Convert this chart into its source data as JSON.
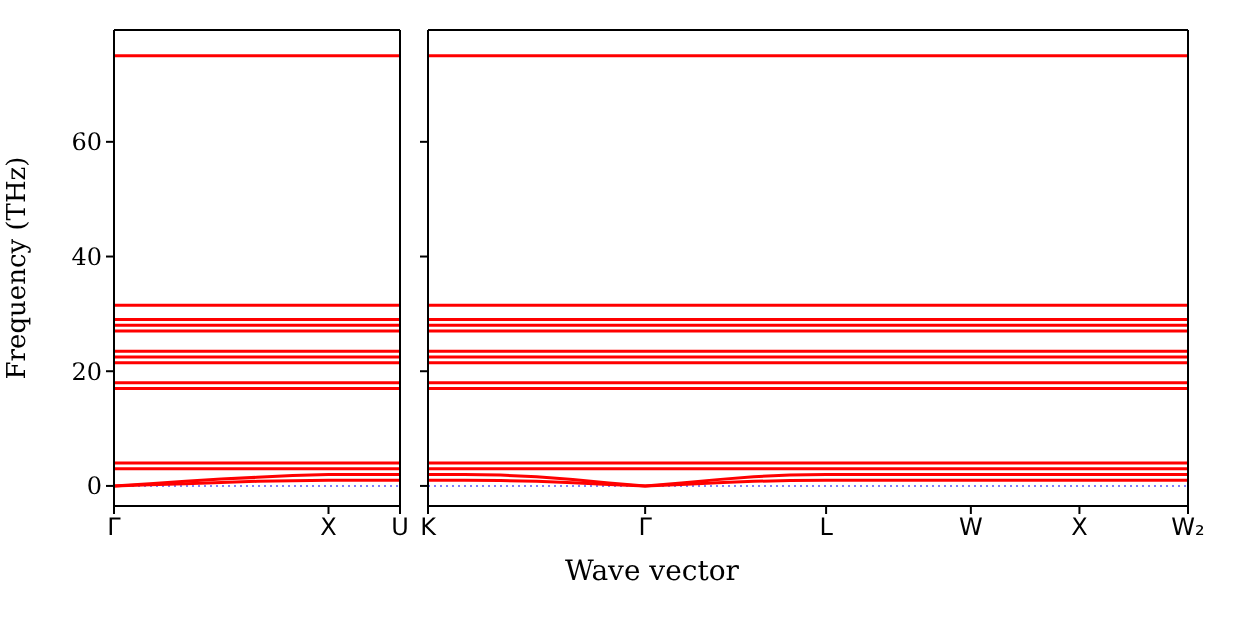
{
  "chart_data": [
    {
      "type": "line",
      "ylabel": "Frequency (THz)",
      "categories": [
        "Γ",
        null,
        null,
        null,
        null,
        null,
        "X",
        null,
        "U"
      ],
      "ylim": [
        -3.5,
        79.5
      ],
      "yticks": [
        0,
        20,
        40,
        60
      ],
      "grid": false,
      "legend": false,
      "marker": "none",
      "line_style": "solid",
      "ref_lines": [
        {
          "axis": "y",
          "value": 0,
          "label": null,
          "color": "#8080ff",
          "line_style": "dotted"
        }
      ],
      "series": [
        {
          "color": "#ff0000",
          "values": [
            75,
            75,
            75,
            75,
            75,
            75,
            75,
            75,
            75
          ]
        },
        {
          "color": "#ff0000",
          "values": [
            31.5,
            31.5,
            31.5,
            31.5,
            31.5,
            31.5,
            31.5,
            31.5,
            31.5
          ]
        },
        {
          "color": "#ff0000",
          "values": [
            29,
            29,
            29,
            29,
            29,
            29,
            29,
            29,
            29
          ]
        },
        {
          "color": "#ff0000",
          "values": [
            28,
            28,
            28,
            28,
            28,
            28,
            28,
            28,
            28
          ]
        },
        {
          "color": "#ff0000",
          "values": [
            27,
            27,
            27,
            27,
            27,
            27,
            27,
            27,
            27
          ]
        },
        {
          "color": "#ff0000",
          "values": [
            23.5,
            23.5,
            23.5,
            23.5,
            23.5,
            23.5,
            23.5,
            23.5,
            23.5
          ]
        },
        {
          "color": "#ff0000",
          "values": [
            22.5,
            22.5,
            22.5,
            22.5,
            22.5,
            22.5,
            22.5,
            22.5,
            22.5
          ]
        },
        {
          "color": "#ff0000",
          "values": [
            21.5,
            21.5,
            21.5,
            21.5,
            21.5,
            21.5,
            21.5,
            21.5,
            21.5
          ]
        },
        {
          "color": "#ff0000",
          "values": [
            18,
            18,
            18,
            18,
            18,
            18,
            18,
            18,
            18
          ]
        },
        {
          "color": "#ff0000",
          "values": [
            17,
            17,
            17,
            17,
            17,
            17,
            17,
            17,
            17
          ]
        },
        {
          "color": "#ff0000",
          "values": [
            4,
            4,
            4,
            4,
            4,
            4,
            4,
            4,
            4
          ]
        },
        {
          "color": "#ff0000",
          "values": [
            3,
            3,
            3,
            3,
            3,
            3,
            3,
            3,
            3
          ]
        },
        {
          "color": "#ff0000",
          "values": [
            0,
            0.4,
            0.8,
            1.2,
            1.5,
            1.8,
            2,
            2,
            2
          ]
        },
        {
          "color": "#ff0000",
          "values": [
            0,
            0.2,
            0.4,
            0.6,
            0.8,
            0.9,
            1,
            1,
            1
          ]
        }
      ]
    },
    {
      "type": "line",
      "xlabel": "Wave vector",
      "categories": [
        "K",
        null,
        null,
        null,
        null,
        null,
        "Γ",
        null,
        null,
        null,
        null,
        "L",
        null,
        null,
        null,
        "W",
        null,
        null,
        "X",
        null,
        null,
        "W₂"
      ],
      "ylim": [
        -3.5,
        79.5
      ],
      "yticks": [
        0,
        20,
        40,
        60
      ],
      "tick_labels": "x",
      "grid": false,
      "legend": false,
      "marker": "none",
      "line_style": "solid",
      "ref_lines": [
        {
          "axis": "y",
          "value": 0,
          "label": null,
          "color": "#8080ff",
          "line_style": "dotted"
        }
      ],
      "series": [
        {
          "color": "#ff0000",
          "values": [
            75,
            75,
            75,
            75,
            75,
            75,
            75,
            75,
            75,
            75,
            75,
            75,
            75,
            75,
            75,
            75,
            75,
            75,
            75,
            75,
            75,
            75
          ]
        },
        {
          "color": "#ff0000",
          "values": [
            31.5,
            31.5,
            31.5,
            31.5,
            31.5,
            31.5,
            31.5,
            31.5,
            31.5,
            31.5,
            31.5,
            31.5,
            31.5,
            31.5,
            31.5,
            31.5,
            31.5,
            31.5,
            31.5,
            31.5,
            31.5,
            31.5
          ]
        },
        {
          "color": "#ff0000",
          "values": [
            29,
            29,
            29,
            29,
            29,
            29,
            29,
            29,
            29,
            29,
            29,
            29,
            29,
            29,
            29,
            29,
            29,
            29,
            29,
            29,
            29,
            29
          ]
        },
        {
          "color": "#ff0000",
          "values": [
            28,
            28,
            28,
            28,
            28,
            28,
            28,
            28,
            28,
            28,
            28,
            28,
            28,
            28,
            28,
            28,
            28,
            28,
            28,
            28,
            28,
            28
          ]
        },
        {
          "color": "#ff0000",
          "values": [
            27,
            27,
            27,
            27,
            27,
            27,
            27,
            27,
            27,
            27,
            27,
            27,
            27,
            27,
            27,
            27,
            27,
            27,
            27,
            27,
            27,
            27
          ]
        },
        {
          "color": "#ff0000",
          "values": [
            23.5,
            23.5,
            23.5,
            23.5,
            23.5,
            23.5,
            23.5,
            23.5,
            23.5,
            23.5,
            23.5,
            23.5,
            23.5,
            23.5,
            23.5,
            23.5,
            23.5,
            23.5,
            23.5,
            23.5,
            23.5,
            23.5
          ]
        },
        {
          "color": "#ff0000",
          "values": [
            22.5,
            22.5,
            22.5,
            22.5,
            22.5,
            22.5,
            22.5,
            22.5,
            22.5,
            22.5,
            22.5,
            22.5,
            22.5,
            22.5,
            22.5,
            22.5,
            22.5,
            22.5,
            22.5,
            22.5,
            22.5,
            22.5
          ]
        },
        {
          "color": "#ff0000",
          "values": [
            21.5,
            21.5,
            21.5,
            21.5,
            21.5,
            21.5,
            21.5,
            21.5,
            21.5,
            21.5,
            21.5,
            21.5,
            21.5,
            21.5,
            21.5,
            21.5,
            21.5,
            21.5,
            21.5,
            21.5,
            21.5,
            21.5
          ]
        },
        {
          "color": "#ff0000",
          "values": [
            18,
            18,
            18,
            18,
            18,
            18,
            18,
            18,
            18,
            18,
            18,
            18,
            18,
            18,
            18,
            18,
            18,
            18,
            18,
            18,
            18,
            18
          ]
        },
        {
          "color": "#ff0000",
          "values": [
            17,
            17,
            17,
            17,
            17,
            17,
            17,
            17,
            17,
            17,
            17,
            17,
            17,
            17,
            17,
            17,
            17,
            17,
            17,
            17,
            17,
            17
          ]
        },
        {
          "color": "#ff0000",
          "values": [
            4,
            4,
            4,
            4,
            4,
            4,
            4,
            4,
            4,
            4,
            4,
            4,
            4,
            4,
            4,
            4,
            4,
            4,
            4,
            4,
            4,
            4
          ]
        },
        {
          "color": "#ff0000",
          "values": [
            3,
            3,
            3,
            3,
            3,
            3,
            3,
            3,
            3,
            3,
            3,
            3,
            3,
            3,
            3,
            3,
            3,
            3,
            3,
            3,
            3,
            3
          ]
        },
        {
          "color": "#ff0000",
          "values": [
            2,
            2,
            1.9,
            1.6,
            1.1,
            0.5,
            0,
            0.5,
            1.1,
            1.6,
            1.9,
            2,
            2,
            2,
            2,
            2,
            2,
            2,
            2,
            2,
            2,
            2
          ]
        },
        {
          "color": "#ff0000",
          "values": [
            1,
            1,
            0.95,
            0.8,
            0.55,
            0.25,
            0,
            0.25,
            0.55,
            0.8,
            0.95,
            1,
            1,
            1,
            1,
            1,
            1,
            1,
            1,
            1,
            1,
            1
          ]
        }
      ]
    }
  ]
}
